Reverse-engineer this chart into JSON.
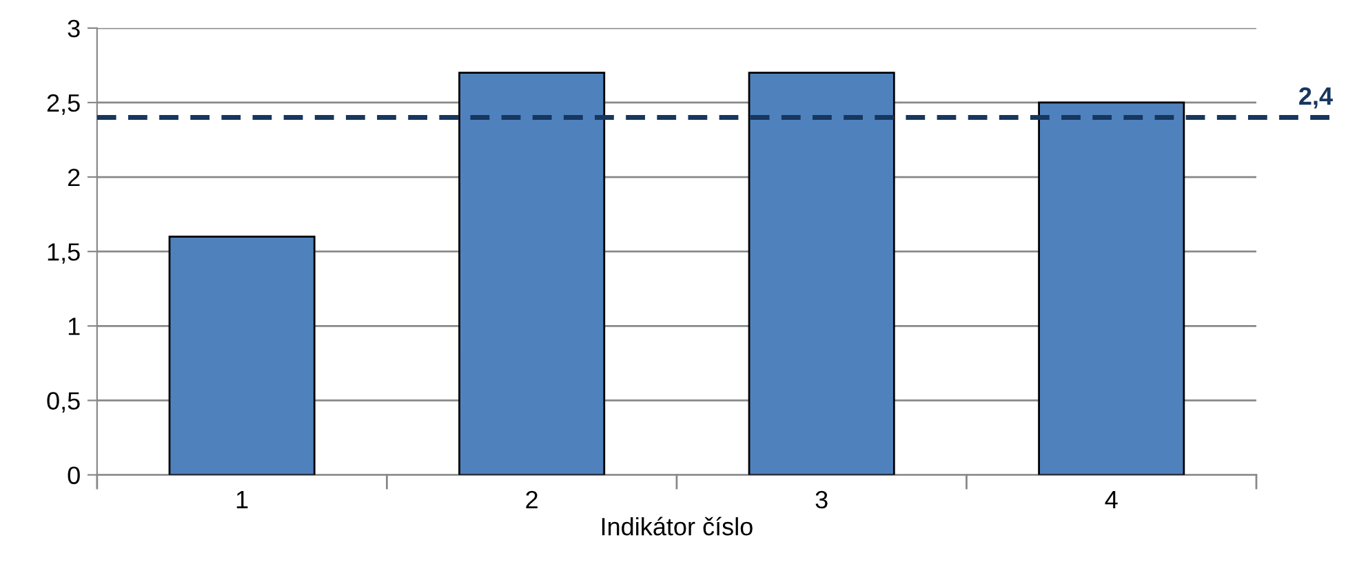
{
  "chart_data": {
    "type": "bar",
    "xlabel": "Indikátor číslo",
    "categories": [
      "1",
      "2",
      "3",
      "4"
    ],
    "series": [
      {
        "color": "#4f81bd",
        "values": [
          1.6,
          2.7,
          2.7,
          2.5
        ]
      }
    ],
    "ylim": [
      0,
      3
    ],
    "yticks": [
      0,
      {
        "value": 0.5,
        "label": "0,5"
      },
      1,
      {
        "value": 1.5,
        "label": "1,5"
      },
      2,
      {
        "value": 2.5,
        "label": "2,5"
      },
      3
    ],
    "grid": "y",
    "ref_lines": [
      {
        "axis": "y",
        "value": 2.4,
        "label": "2,4",
        "color": "#17375e",
        "line_style": "dashed"
      }
    ]
  }
}
